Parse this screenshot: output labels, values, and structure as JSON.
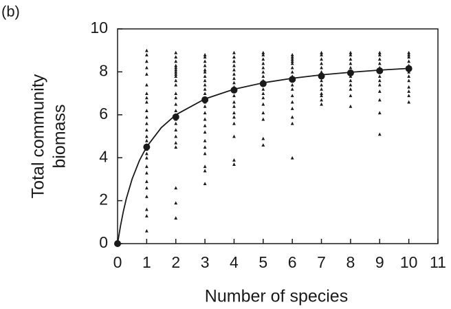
{
  "chart_data": {
    "type": "scatter",
    "panel_label": "(b)",
    "xlabel": "Number of species",
    "ylabel": [
      "Total community",
      "biomass"
    ],
    "xlim": [
      0,
      11
    ],
    "ylim": [
      0,
      10
    ],
    "xticks": [
      0,
      1,
      2,
      3,
      4,
      5,
      6,
      7,
      8,
      9,
      10,
      11
    ],
    "yticks": [
      0,
      2,
      4,
      6,
      8,
      10
    ],
    "color": "#1a1a1a",
    "observations": [
      {
        "x": 1,
        "values": [
          9.0,
          8.8,
          8.5,
          8.2,
          7.9,
          7.4,
          7.0,
          6.8,
          6.6,
          6.2,
          5.9,
          5.6,
          5.3,
          5.0,
          4.8,
          4.6,
          4.4,
          4.2,
          4.0,
          3.6,
          3.3,
          2.9,
          2.6,
          2.2,
          1.6,
          1.3,
          0.6
        ]
      },
      {
        "x": 2,
        "values": [
          8.9,
          8.7,
          8.5,
          8.3,
          8.2,
          8.1,
          8.0,
          7.9,
          7.8,
          7.6,
          7.4,
          7.0,
          6.8,
          6.5,
          6.2,
          6.0,
          5.8,
          5.6,
          5.3,
          5.0,
          4.7,
          4.5,
          2.6,
          1.9,
          1.2
        ]
      },
      {
        "x": 3,
        "values": [
          8.8,
          8.7,
          8.5,
          8.3,
          8.1,
          8.0,
          7.8,
          7.6,
          7.4,
          7.2,
          7.0,
          6.8,
          6.6,
          6.4,
          6.1,
          5.8,
          5.5,
          5.2,
          4.8,
          4.5,
          4.2,
          3.6,
          3.4,
          2.8
        ]
      },
      {
        "x": 4,
        "values": [
          8.9,
          8.7,
          8.5,
          8.3,
          8.1,
          7.9,
          7.7,
          7.5,
          7.3,
          7.1,
          6.9,
          6.6,
          6.4,
          6.1,
          5.9,
          5.6,
          5.0,
          3.9,
          3.7
        ]
      },
      {
        "x": 5,
        "values": [
          8.9,
          8.8,
          8.6,
          8.4,
          8.2,
          8.0,
          7.8,
          7.6,
          7.4,
          7.2,
          7.0,
          6.8,
          6.5,
          6.1,
          5.8,
          4.9,
          4.6
        ]
      },
      {
        "x": 6,
        "values": [
          8.8,
          8.7,
          8.6,
          8.5,
          8.4,
          8.2,
          8.0,
          7.8,
          7.6,
          7.4,
          7.2,
          6.9,
          6.6,
          6.3,
          5.9,
          5.6,
          4.0
        ]
      },
      {
        "x": 7,
        "values": [
          8.9,
          8.8,
          8.6,
          8.4,
          8.2,
          8.0,
          7.8,
          7.6,
          7.4,
          7.2,
          7.0,
          6.9,
          6.7,
          6.5
        ]
      },
      {
        "x": 8,
        "values": [
          8.9,
          8.8,
          8.6,
          8.4,
          8.2,
          8.0,
          7.8,
          7.6,
          7.4,
          7.2,
          6.9,
          6.4
        ]
      },
      {
        "x": 9,
        "values": [
          8.9,
          8.8,
          8.6,
          8.4,
          8.2,
          8.0,
          7.8,
          7.6,
          7.4,
          7.1,
          6.7,
          6.1,
          5.1
        ]
      },
      {
        "x": 10,
        "values": [
          8.9,
          8.8,
          8.7,
          8.5,
          8.3,
          8.1,
          8.0,
          7.8,
          7.6,
          7.3,
          7.1,
          6.9,
          6.6
        ]
      }
    ],
    "means": {
      "x": [
        0,
        1,
        2,
        3,
        4,
        5,
        6,
        7,
        8,
        9,
        10
      ],
      "values": [
        0,
        4.5,
        5.9,
        6.7,
        7.15,
        7.45,
        7.65,
        7.8,
        7.95,
        8.05,
        8.15
      ]
    },
    "fit": {
      "x": [
        0,
        0.1,
        0.2,
        0.3,
        0.5,
        0.75,
        1,
        1.5,
        2,
        3,
        4,
        5,
        6,
        7,
        8,
        9,
        10
      ],
      "values": [
        0,
        0.82,
        1.51,
        2.09,
        3.01,
        3.87,
        4.51,
        5.4,
        6.0,
        6.74,
        7.19,
        7.49,
        7.7,
        7.86,
        7.98,
        8.08,
        8.16
      ]
    }
  }
}
